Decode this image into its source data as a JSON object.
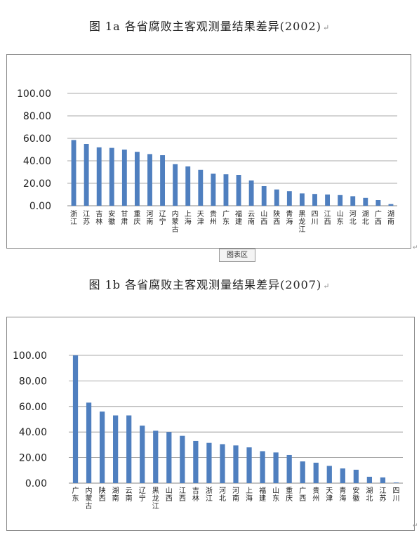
{
  "captions": {
    "fig_a": "图 1a 各省腐败主客观测量结果差异(2002)",
    "fig_b": "图 1b 各省腐败主客观测量结果差异(2007)",
    "para_mark": "↵"
  },
  "chart_tab_label": "图表区",
  "chart_data": [
    {
      "type": "bar",
      "title": "",
      "xlabel": "",
      "ylabel": "",
      "ylim": [
        0,
        100
      ],
      "yticks": [
        "0.00",
        "20.00",
        "40.00",
        "60.00",
        "80.00",
        "100.00"
      ],
      "grid": true,
      "bar_color": "#4f7fbf",
      "categories": [
        "浙江",
        "江苏",
        "吉林",
        "安徽",
        "甘肃",
        "重庆",
        "河南",
        "辽宁",
        "内蒙古",
        "上海",
        "天津",
        "贵州",
        "广东",
        "福建",
        "云南",
        "山西",
        "陕西",
        "青海",
        "黑龙江",
        "四川",
        "江西",
        "山东",
        "河北",
        "湖北",
        "广西",
        "湖南"
      ],
      "values": [
        58.5,
        55,
        52,
        51.5,
        50,
        48,
        46,
        45,
        37,
        35,
        32,
        28.5,
        28,
        27.5,
        22.5,
        17.5,
        14.5,
        13,
        11,
        10.5,
        10,
        9.5,
        8.5,
        7,
        5,
        1.5
      ]
    },
    {
      "type": "bar",
      "title": "",
      "xlabel": "",
      "ylabel": "",
      "ylim": [
        0,
        100
      ],
      "yticks": [
        "0.00",
        "20.00",
        "40.00",
        "60.00",
        "80.00",
        "100.00"
      ],
      "grid": true,
      "bar_color": "#4f7fbf",
      "categories": [
        "广东",
        "内蒙古",
        "陕西",
        "湖南",
        "云南",
        "辽宁",
        "黑龙江",
        "山西",
        "江西",
        "吉林",
        "浙江",
        "河北",
        "河南",
        "上海",
        "福建",
        "山东",
        "重庆",
        "广西",
        "贵州",
        "天津",
        "青海",
        "安徽",
        "湖北",
        "江苏",
        "四川"
      ],
      "values": [
        100,
        63,
        56,
        53,
        53,
        45,
        41,
        40,
        37,
        33,
        31.5,
        30.5,
        29.5,
        28,
        25,
        24,
        22,
        17,
        16,
        13.5,
        11.5,
        10.5,
        5,
        4.5,
        0.5
      ]
    }
  ]
}
